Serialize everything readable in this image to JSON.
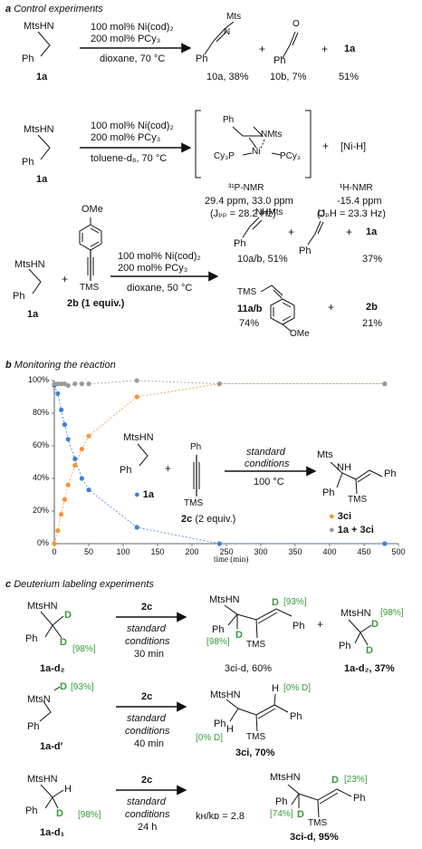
{
  "sections": {
    "a": {
      "letter": "a",
      "title": "Control experiments"
    },
    "b": {
      "letter": "b",
      "title": "Monitoring the reaction"
    },
    "c": {
      "letter": "c",
      "title": "Deuterium labeling experiments"
    }
  },
  "reaction1": {
    "reactant": {
      "line1": "MtsHN",
      "line2": "Ph",
      "id": "1a"
    },
    "cond_top1": "100 mol% Ni(cod)₂",
    "cond_top2": "200 mol% PCy₃",
    "cond_bottom": "dioxane, 70 °C",
    "p1": {
      "label": "Mts",
      "n": "N",
      "ph": "Ph",
      "result": "10a, 38%"
    },
    "p2": {
      "o": "O",
      "ph": "Ph",
      "result": "10b, 7%"
    },
    "p3": {
      "id": "1a",
      "result": "51%"
    },
    "plus": "+"
  },
  "reaction2": {
    "reactant": {
      "line1": "MtsHN",
      "line2": "Ph",
      "id": "1a"
    },
    "cond_top1": "100 mol% Ni(cod)₂",
    "cond_top2": "200 mol% PCy₃",
    "cond_bottom": "toluene-d₈, 70 °C",
    "complex": {
      "ph": "Ph",
      "nmts": "NMts",
      "ni": "Ni",
      "left": "Cy₃P",
      "right": "PCy₃"
    },
    "nih": "[Ni-H]",
    "nmr1": {
      "title": "³¹P-NMR",
      "ppm": "29.4 ppm, 33.0 ppm",
      "j": "(Jₚₚ = 28.2 Hz)"
    },
    "nmr2": {
      "title": "¹H-NMR",
      "ppm": "-15.4 ppm",
      "j": "(JₚH = 23.3 Hz)"
    },
    "plus": "+"
  },
  "reaction3": {
    "reactant": {
      "line1": "MtsHN",
      "line2": "Ph",
      "id": "1a"
    },
    "alkyne": {
      "ome": "OMe",
      "tms": "TMS",
      "id": "2b (1 equiv.)"
    },
    "cond_top1": "100 mol% Ni(cod)₂",
    "cond_top2": "200 mol% PCy₃",
    "cond_bottom": "dioxane, 50 °C",
    "p_imine": {
      "label": "NHMts",
      "ph": "Ph",
      "result": "10a/b, 51%"
    },
    "p_ald": {
      "o": "O",
      "ph": "Ph"
    },
    "p_1a": {
      "id": "1a",
      "result": "37%"
    },
    "p_11": {
      "tms": "TMS",
      "ome": "OMe",
      "id": "11a/b",
      "result": "74%"
    },
    "p_2b": {
      "id": "2b",
      "result": "21%"
    },
    "plus": "+"
  },
  "chart_data": {
    "type": "scatter",
    "xlabel": "time (min)",
    "xlim": [
      0,
      500
    ],
    "ylim": [
      0,
      100
    ],
    "x_ticks": [
      "0",
      "50",
      "100",
      "150",
      "200",
      "250",
      "300",
      "350",
      "400",
      "450",
      "500"
    ],
    "y_ticks": [
      "0%",
      "20%",
      "40%",
      "60%",
      "80%",
      "100%"
    ],
    "series": [
      {
        "name": "1a",
        "color": "#3b82d6",
        "points": [
          [
            0,
            97
          ],
          [
            5,
            92
          ],
          [
            10,
            82
          ],
          [
            15,
            73
          ],
          [
            20,
            64
          ],
          [
            30,
            52
          ],
          [
            40,
            40
          ],
          [
            50,
            33
          ],
          [
            120,
            10
          ],
          [
            240,
            0
          ],
          [
            480,
            0
          ]
        ]
      },
      {
        "name": "3ci",
        "color": "#f5943a",
        "points": [
          [
            0,
            0
          ],
          [
            5,
            8
          ],
          [
            10,
            18
          ],
          [
            15,
            27
          ],
          [
            20,
            36
          ],
          [
            30,
            48
          ],
          [
            40,
            58
          ],
          [
            50,
            66
          ],
          [
            120,
            90
          ],
          [
            240,
            98
          ],
          [
            480,
            98
          ]
        ]
      },
      {
        "name": "1a + 3ci",
        "color": "#9a9a9a",
        "points": [
          [
            0,
            98
          ],
          [
            5,
            98
          ],
          [
            10,
            98
          ],
          [
            15,
            98
          ],
          [
            20,
            97
          ],
          [
            30,
            98
          ],
          [
            40,
            98
          ],
          [
            50,
            98
          ],
          [
            120,
            100
          ],
          [
            240,
            98
          ],
          [
            480,
            98
          ]
        ]
      }
    ],
    "grid": false
  },
  "chart_scheme": {
    "reactant": {
      "line1": "MtsHN",
      "line2": "Ph"
    },
    "alkyne": {
      "ph": "Ph",
      "tms": "TMS",
      "id": "2c",
      "equiv": "(2 equiv.)"
    },
    "cond_top1": "standard",
    "cond_top2": "conditions",
    "cond_bottom": "100 °C",
    "product": {
      "mts": "Mts",
      "nh": "NH",
      "ph": "Ph",
      "tms": "TMS"
    },
    "plus": "+"
  },
  "deut1": {
    "reactant": {
      "line1": "MtsHN",
      "ph": "Ph",
      "d1": "D",
      "d2": "D",
      "pct": "[98%]",
      "id": "1a-d₂"
    },
    "reagent": "2c",
    "cond1": "standard",
    "cond2": "conditions",
    "time": "30 min",
    "product": {
      "line1": "MtsHN",
      "ph1": "Ph",
      "ph2": "Ph",
      "d1": "D",
      "d2": "D",
      "tms": "TMS",
      "pct1": "[93%]",
      "pct2": "[98%]",
      "id": "3ci-d, 60%"
    },
    "recovered": {
      "line1": "MtsHN",
      "ph": "Ph",
      "d1": "D",
      "d2": "D",
      "pct": "[98%]",
      "id": "1a-d₂, 37%"
    },
    "plus": "+"
  },
  "deut2": {
    "reactant": {
      "line1": "MtsN",
      "d": "D",
      "pct": "[93%]",
      "ph": "Ph",
      "id": "1a-d′"
    },
    "reagent": "2c",
    "cond1": "standard",
    "cond2": "conditions",
    "time": "40 min",
    "product": {
      "line1": "MtsHN",
      "h1": "H",
      "h2": "H",
      "ph1": "Ph",
      "ph2": "Ph",
      "tms": "TMS",
      "pct1": "[0% D]",
      "pct2": "[0% D]",
      "id": "3ci, 70%"
    }
  },
  "deut3": {
    "reactant": {
      "line1": "MtsHN",
      "ph": "Ph",
      "h": "H",
      "d": "D",
      "pct": "[98%]",
      "id": "1a-d₁"
    },
    "reagent": "2c",
    "cond1": "standard",
    "cond2": "conditions",
    "time": "24 h",
    "kie": "kʜ/kᴅ = 2.8",
    "product": {
      "line1": "MtsHN",
      "ph1": "Ph",
      "ph2": "Ph",
      "d1": "D",
      "d2": "D",
      "tms": "TMS",
      "pct1": "[23%]",
      "pct2": "[74%]",
      "id": "3ci-d, 95%"
    }
  }
}
